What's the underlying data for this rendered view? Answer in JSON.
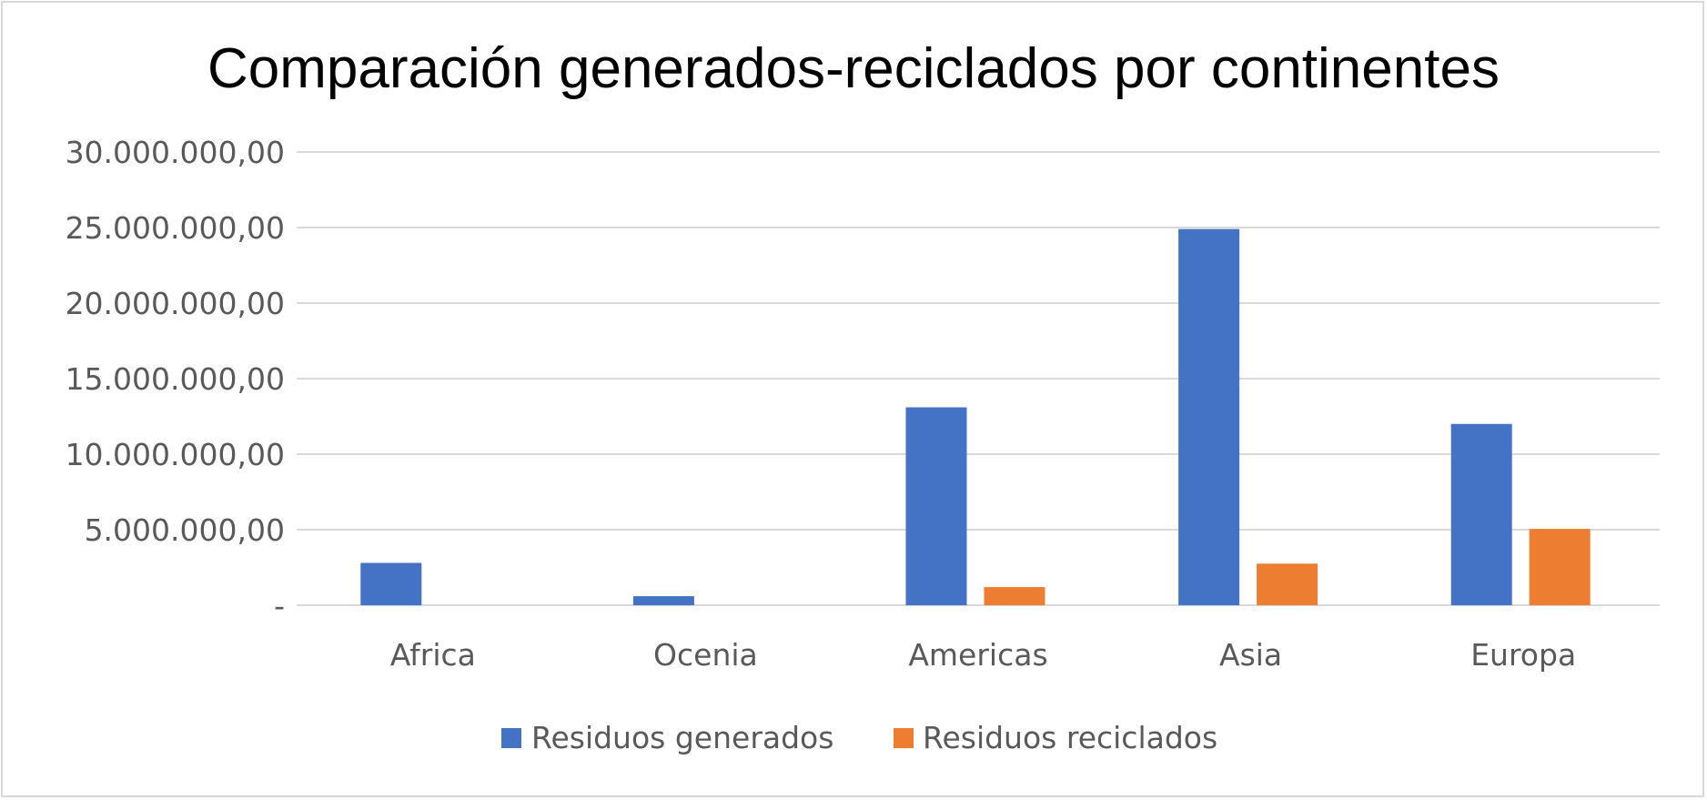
{
  "chart_data": {
    "type": "bar",
    "title": "Comparación generados-reciclados por continentes",
    "xlabel": "",
    "ylabel": "",
    "categories": [
      "Africa",
      "Ocenia",
      "Americas",
      "Asia",
      "Europa"
    ],
    "series": [
      {
        "name": "Residuos generados",
        "color": "#4472c4",
        "values": [
          2800000,
          600000,
          13100000,
          24900000,
          12000000
        ]
      },
      {
        "name": "Residuos reciclados",
        "color": "#ed7d31",
        "values": [
          0,
          0,
          1200000,
          2750000,
          5050000
        ]
      }
    ],
    "ylim": [
      0,
      30000000
    ],
    "yticks": [
      {
        "value": 0,
        "label": "-"
      },
      {
        "value": 5000000,
        "label": "5.000.000,00"
      },
      {
        "value": 10000000,
        "label": "10.000.000,00"
      },
      {
        "value": 15000000,
        "label": "15.000.000,00"
      },
      {
        "value": 20000000,
        "label": "20.000.000,00"
      },
      {
        "value": 25000000,
        "label": "25.000.000,00"
      },
      {
        "value": 30000000,
        "label": "30.000.000,00"
      }
    ],
    "grid": true,
    "legend_position": "bottom"
  }
}
